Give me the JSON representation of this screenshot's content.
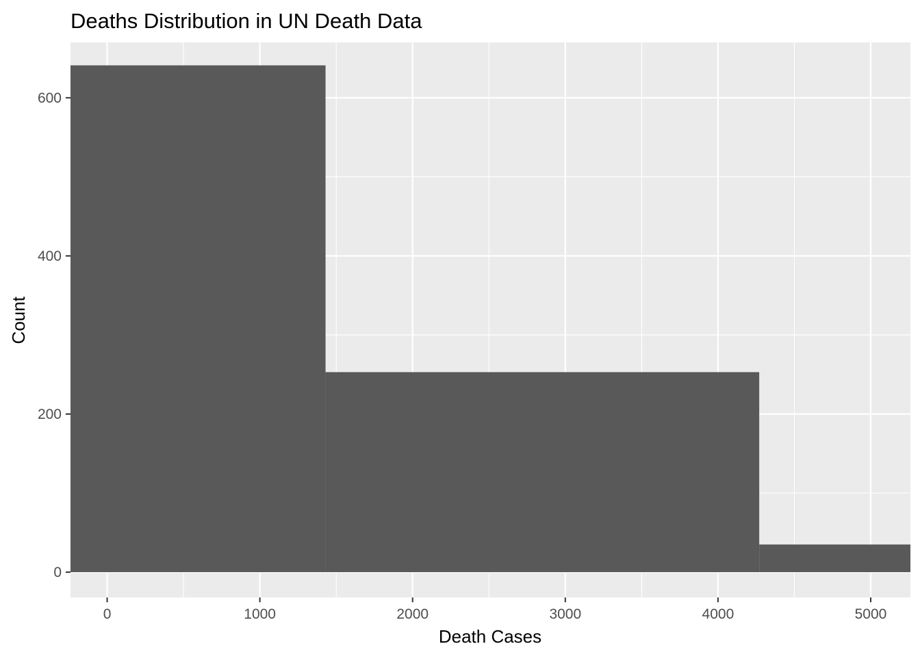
{
  "chart_data": {
    "type": "bar",
    "title": "Deaths Distribution in UN Death Data",
    "xlabel": "Death Cases",
    "ylabel": "Count",
    "bins": [
      {
        "x0": -240,
        "x1": 1430,
        "count": 641
      },
      {
        "x0": 1430,
        "x1": 4270,
        "count": 253
      },
      {
        "x0": 4270,
        "x1": 5260,
        "count": 35
      }
    ],
    "xlim": [
      -240,
      5260
    ],
    "ylim": [
      -32,
      670
    ],
    "xticks": [
      0,
      1000,
      2000,
      3000,
      4000,
      5000
    ],
    "yticks": [
      0,
      200,
      400,
      600
    ],
    "xtick_labels": [
      "0",
      "1000",
      "2000",
      "3000",
      "4000",
      "5000"
    ],
    "ytick_labels": [
      "0",
      "200",
      "400",
      "600"
    ],
    "bar_color": "#595959",
    "panel_background": "#ebebeb",
    "grid": true,
    "grid_color": "#ffffff",
    "legend": "none"
  }
}
